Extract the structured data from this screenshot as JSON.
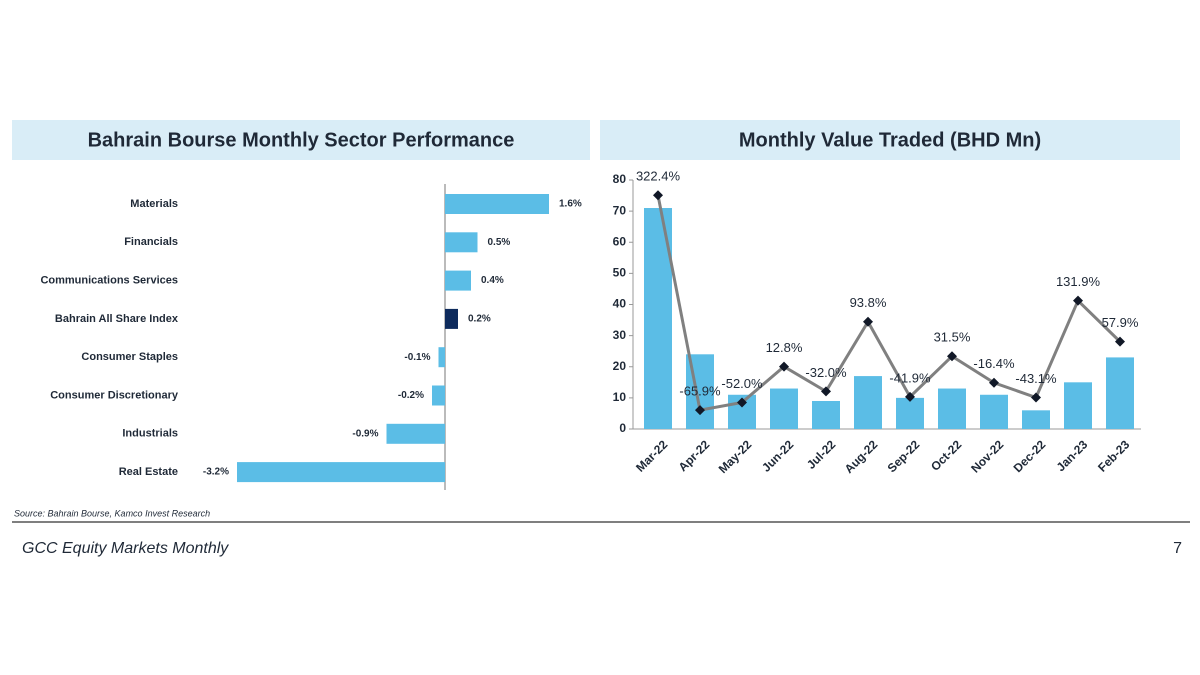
{
  "chart_data": [
    {
      "type": "hbar",
      "title": "Bahrain Bourse Monthly Sector Performance",
      "categories": [
        "Materials",
        "Financials",
        "Communications Services",
        "Bahrain All Share Index",
        "Consumer Staples",
        "Consumer Discretionary",
        "Industrials",
        "Real Estate"
      ],
      "values": [
        1.6,
        0.5,
        0.4,
        0.2,
        -0.1,
        -0.2,
        -0.9,
        -3.2
      ],
      "value_labels": [
        "1.6%",
        "0.5%",
        "0.4%",
        "0.2%",
        "-0.1%",
        "-0.2%",
        "-0.9%",
        "-3.2%"
      ],
      "colors": [
        "#5bbde6",
        "#5bbde6",
        "#5bbde6",
        "#0d2a5c",
        "#5bbde6",
        "#5bbde6",
        "#5bbde6",
        "#5bbde6"
      ]
    },
    {
      "type": "combo",
      "title": "Monthly Value Traded (BHD Mn)",
      "categories": [
        "Mar-22",
        "Apr-22",
        "May-22",
        "Jun-22",
        "Jul-22",
        "Aug-22",
        "Sep-22",
        "Oct-22",
        "Nov-22",
        "Dec-22",
        "Jan-23",
        "Feb-23"
      ],
      "ylim": [
        0,
        80
      ],
      "yticks": [
        0,
        10,
        20,
        30,
        40,
        50,
        60,
        70,
        80
      ],
      "y2lim": [
        -100,
        350
      ],
      "series": [
        {
          "type": "bar",
          "color": "#5bbde6",
          "values": [
            71,
            24,
            11,
            13,
            9,
            17,
            10,
            13,
            11,
            6,
            15,
            23
          ]
        },
        {
          "type": "line",
          "axis": "y2",
          "color": "#808080",
          "marker_color": "#111827",
          "values": [
            322.4,
            -65.9,
            -52.0,
            12.8,
            -32.0,
            93.8,
            -41.9,
            31.5,
            -16.4,
            -43.1,
            131.9,
            57.9
          ],
          "value_labels": [
            "322.4%",
            "-65.9%",
            "-52.0%",
            "12.8%",
            "-32.0%",
            "93.8%",
            "-41.9%",
            "31.5%",
            "-16.4%",
            "-43.1%",
            "131.9%",
            "57.9%"
          ]
        }
      ]
    }
  ],
  "source": "Source: Bahrain Bourse, Kamco Invest Research",
  "footer": {
    "title": "GCC Equity Markets Monthly",
    "page": "7"
  }
}
